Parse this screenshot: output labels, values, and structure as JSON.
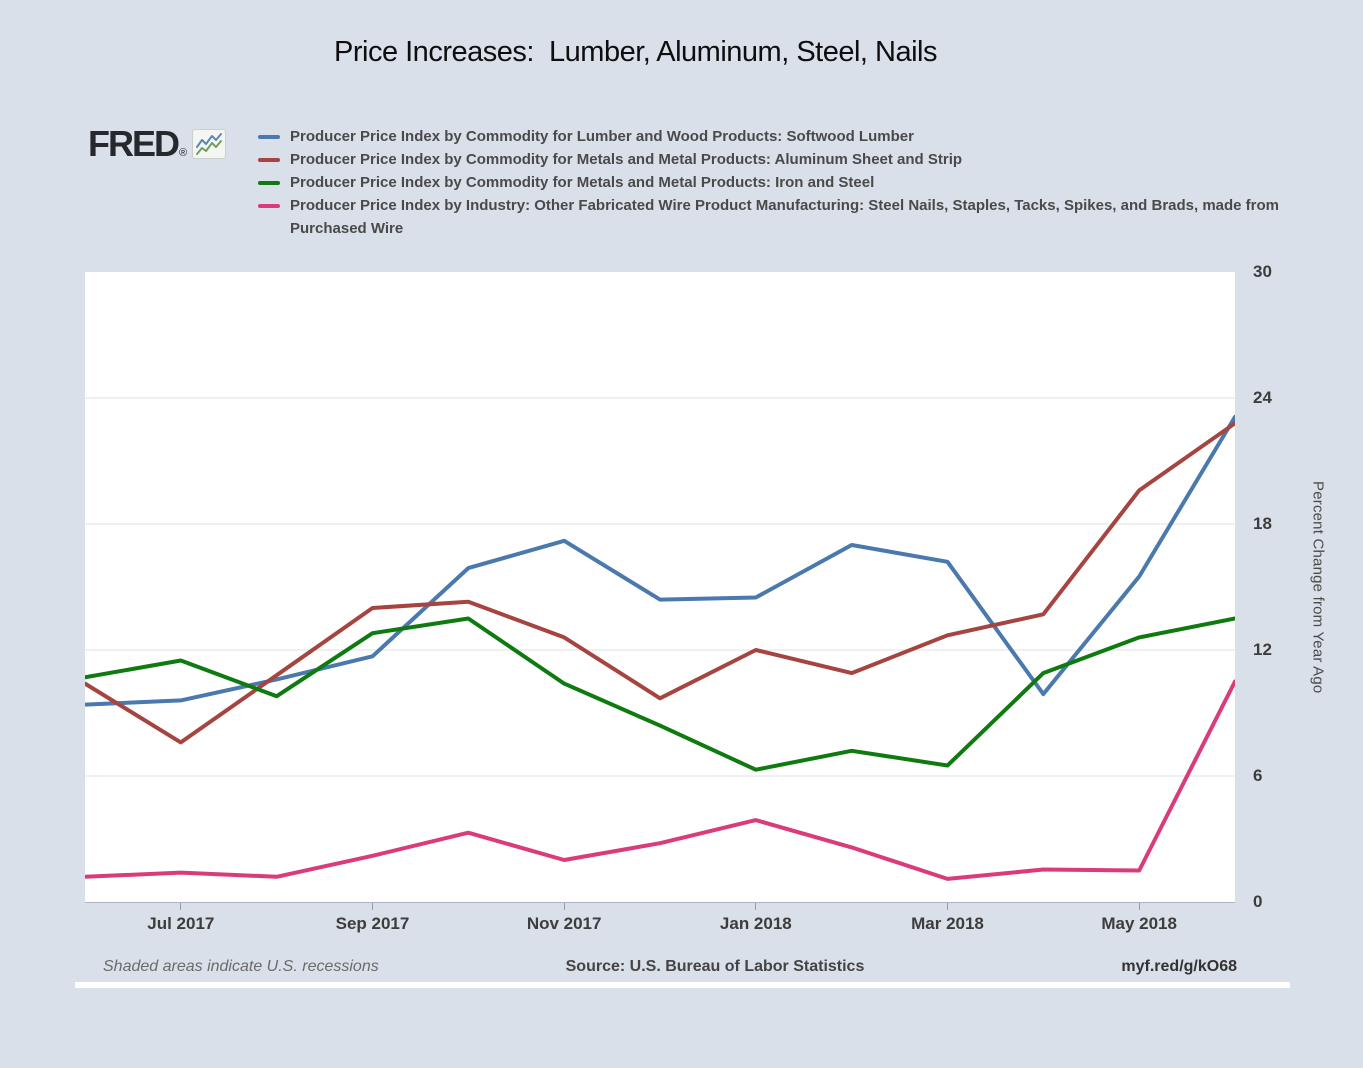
{
  "page": {
    "title": "Price Increases:  Lumber, Aluminum, Steel, Nails"
  },
  "brand": {
    "logo_text": "FRED",
    "registered_mark": "®",
    "sparkline_icon": "fred-sparkline-icon"
  },
  "chart_data": {
    "type": "line",
    "title": "Price Increases:  Lumber, Aluminum, Steel, Nails",
    "x": [
      "Jun 2017",
      "Jul 2017",
      "Aug 2017",
      "Sep 2017",
      "Oct 2017",
      "Nov 2017",
      "Dec 2017",
      "Jan 2018",
      "Feb 2018",
      "Mar 2018",
      "Apr 2018",
      "May 2018",
      "Jun 2018"
    ],
    "x_tick_labels": [
      "Jul 2017",
      "Sep 2017",
      "Nov 2017",
      "Jan 2018",
      "Mar 2018",
      "May 2018"
    ],
    "x_tick_indices": [
      1,
      3,
      5,
      7,
      9,
      11
    ],
    "ylabel": "Percent Change from Year Ago",
    "ylim": [
      0,
      30
    ],
    "yticks": [
      0,
      6,
      12,
      18,
      24,
      30
    ],
    "grid_values": [
      6,
      12,
      18,
      24
    ],
    "grid_on": true,
    "legend_position": "top-left",
    "series": [
      {
        "name": "Producer Price Index by Commodity for Lumber and Wood Products: Softwood Lumber",
        "color": "#4a79ad",
        "values": [
          9.4,
          9.6,
          10.6,
          11.7,
          15.9,
          17.2,
          14.4,
          14.5,
          17.0,
          16.2,
          9.9,
          15.5,
          23.1
        ]
      },
      {
        "name": "Producer Price Index by Commodity for Metals and Metal Products: Aluminum Sheet and Strip",
        "color": "#a6443f",
        "values": [
          10.4,
          7.6,
          10.8,
          14.0,
          14.3,
          12.6,
          9.7,
          12.0,
          10.9,
          12.7,
          13.7,
          19.6,
          22.8
        ]
      },
      {
        "name": "Producer Price Index by Commodity for Metals and Metal Products: Iron and Steel",
        "color": "#0e7a10",
        "values": [
          10.7,
          11.5,
          9.8,
          12.8,
          13.5,
          10.4,
          8.4,
          6.3,
          7.2,
          6.5,
          10.9,
          12.6,
          13.5
        ]
      },
      {
        "name": "Producer Price Index by Industry: Other Fabricated Wire Product Manufacturing: Steel Nails, Staples, Tacks, Spikes, and Brads, made from Purchased Wire",
        "color": "#da3b7b",
        "values": [
          1.2,
          1.4,
          1.2,
          2.2,
          3.3,
          2.0,
          2.8,
          3.9,
          2.6,
          1.1,
          1.55,
          1.5,
          10.5
        ]
      }
    ]
  },
  "footer": {
    "recessions_note": "Shaded areas indicate U.S. recessions",
    "source": "Source: U.S. Bureau of Labor Statistics",
    "permalink": "myf.red/g/kO68"
  }
}
